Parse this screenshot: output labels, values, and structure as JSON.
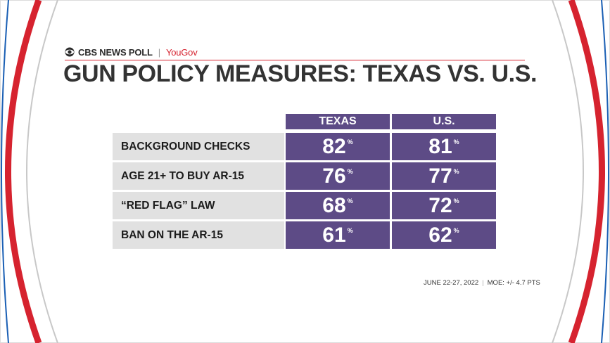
{
  "brand": {
    "poll": "CBS NEWS POLL",
    "separator": "|",
    "partner": "YouGov"
  },
  "title": "GUN POLICY MEASURES:  TEXAS VS. U.S.",
  "footer": {
    "dates": "JUNE 22-27, 2022",
    "separator": "|",
    "moe": "MOE: +/- 4.7 PTS"
  },
  "colors": {
    "cell": "#5d4b86",
    "label_bg": "#e1e1e1",
    "accent_red": "#d6232f",
    "accent_blue": "#1a5fb4"
  },
  "chart_data": {
    "type": "table",
    "title": "GUN POLICY MEASURES:  TEXAS VS. U.S.",
    "columns": [
      "TEXAS",
      "U.S."
    ],
    "unit": "%",
    "rows": [
      {
        "label": "BACKGROUND CHECKS",
        "values": [
          82,
          81
        ]
      },
      {
        "label": "AGE 21+ TO BUY AR-15",
        "values": [
          76,
          77
        ]
      },
      {
        "label": "“RED FLAG” LAW",
        "values": [
          68,
          72
        ]
      },
      {
        "label": "BAN ON THE AR-15",
        "values": [
          61,
          62
        ]
      }
    ]
  }
}
